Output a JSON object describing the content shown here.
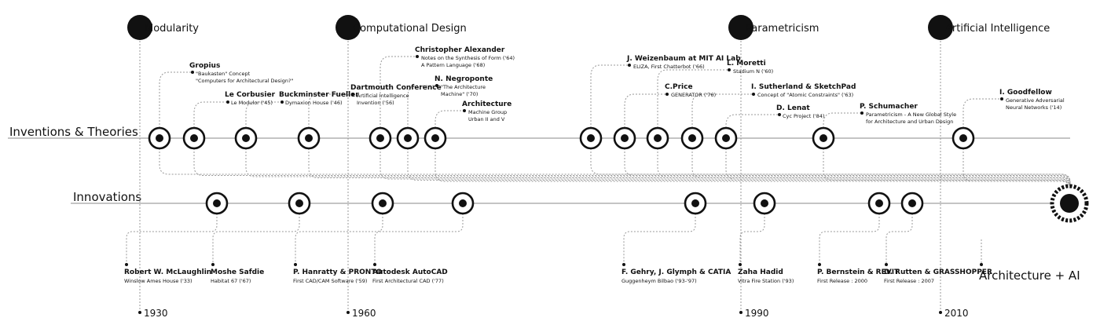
{
  "eras": [
    {
      "label": "Modularity"
    },
    {
      "label": "Computational Design"
    },
    {
      "label": "Parametricism"
    },
    {
      "label": "Artificial Intelligence"
    }
  ],
  "years": [
    "1930",
    "1960",
    "1990",
    "2010"
  ],
  "tracks": {
    "top": "Inventions & Theories",
    "bottom": "Innovations"
  },
  "goal": "Architecture + AI",
  "theories": [
    {
      "title": "Gropius",
      "lines": [
        "\"Baukasten\" Concept",
        "\"Computers for Architectural Design?\""
      ]
    },
    {
      "title": "Le Corbusier",
      "lines": [
        "Le Modulor ('45)"
      ]
    },
    {
      "title": "Buckminster Fueller",
      "lines": [
        "Dymaxion House ('46)"
      ]
    },
    {
      "title": "Dartmouth Conference",
      "lines": [
        "Artificial Intelligence",
        "Invention ('56)"
      ]
    },
    {
      "title": "Christopher Alexander",
      "lines": [
        "Notes on the Synthesis of Form ('64)",
        "A Pattern Language ('68)"
      ]
    },
    {
      "title": "N. Negroponte",
      "lines": [
        "\"The Architecture",
        "Machine\" ('70)"
      ]
    },
    {
      "title": "Architecture",
      "lines": [
        "Machine Group",
        "Urban II and V"
      ]
    },
    {
      "title": "J. Weizenbaum at MIT AI Lab",
      "lines": [
        "ELIZA, First Chatterbot ('66)"
      ]
    },
    {
      "title": "C.Price",
      "lines": [
        "GENERATOR ('76)"
      ]
    },
    {
      "title": "L. Moretti",
      "lines": [
        "Stadium N ('60)"
      ]
    },
    {
      "title": "I. Sutherland & SketchPad",
      "lines": [
        "Concept of \"Atomic Constraints\" ('63)"
      ]
    },
    {
      "title": "D. Lenat",
      "lines": [
        "Cyc Project ('84)"
      ]
    },
    {
      "title": "P. Schumacher",
      "lines": [
        "Parametricism  -  A New Global Style",
        "for Architecture and Urban Design"
      ]
    },
    {
      "title": "I. Goodfellow",
      "lines": [
        "Generative Adversarial",
        "Neural Networks ('14)"
      ]
    }
  ],
  "innovations": [
    {
      "title": "Robert W. McLaughlin",
      "sub": "Winslow Ames House ('33)"
    },
    {
      "title": "Moshe Safdie",
      "sub": "Habitat 67 ('67)"
    },
    {
      "title": "P. Hanratty & PRONTO",
      "sub": "First CAD/CAM Software ('59)"
    },
    {
      "title": "Autodesk AutoCAD",
      "sub": "First Architectural CAD ('77)"
    },
    {
      "title": "F. Gehry, J. Glymph & CATIA",
      "sub": "Guggenheym Bilbao ('93-'97)"
    },
    {
      "title": "Zaha Hadid",
      "sub": "Vitra Fire Station ('93)"
    },
    {
      "title": "P. Bernstein & REVIT",
      "sub": "First Release : 2000"
    },
    {
      "title": "D. Rutten & GRASSHOPPER",
      "sub": "First Release : 2007"
    }
  ],
  "colors": {
    "ink": "#111111",
    "line": "#8a8a8a",
    "dotted": "#9a9a9a"
  }
}
